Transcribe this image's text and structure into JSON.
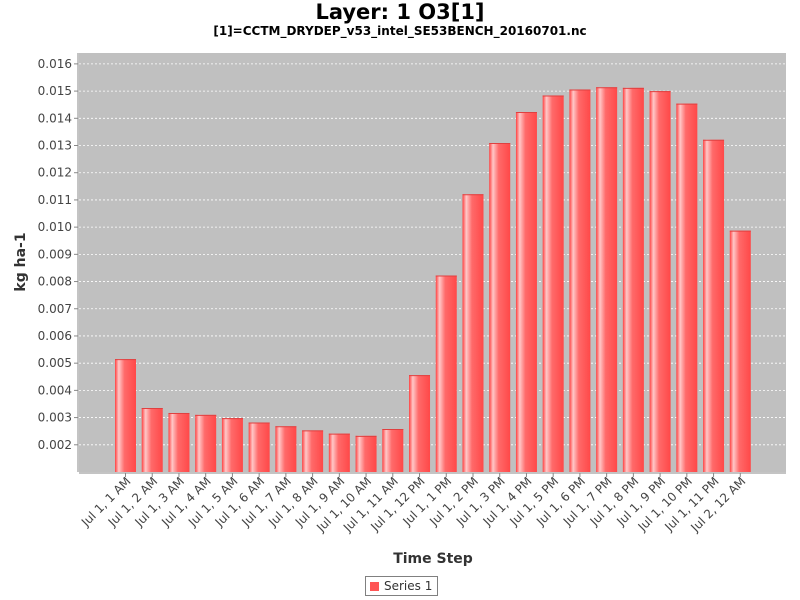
{
  "chart_data": {
    "type": "bar",
    "title": "Layer: 1 O3[1]",
    "subtitle": "[1]=CCTM_DRYDEP_v53_intel_SE53BENCH_20160701.nc",
    "xlabel": "Time Step",
    "ylabel": "kg ha-1",
    "ylim": [
      0.001,
      0.0164
    ],
    "yticks": [
      "0.002",
      "0.003",
      "0.004",
      "0.005",
      "0.006",
      "0.007",
      "0.008",
      "0.009",
      "0.010",
      "0.011",
      "0.012",
      "0.013",
      "0.014",
      "0.015",
      "0.016"
    ],
    "grid": true,
    "legend_position": "bottom",
    "bar_color": "#ff5555",
    "plot_background": "#c0c0c0",
    "categories": [
      "Jul 1, 1 AM",
      "Jul 1, 2 AM",
      "Jul 1, 3 AM",
      "Jul 1, 4 AM",
      "Jul 1, 5 AM",
      "Jul 1, 6 AM",
      "Jul 1, 7 AM",
      "Jul 1, 8 AM",
      "Jul 1, 9 AM",
      "Jul 1, 10 AM",
      "Jul 1, 11 AM",
      "Jul 1, 12 PM",
      "Jul 1, 1 PM",
      "Jul 1, 2 PM",
      "Jul 1, 3 PM",
      "Jul 1, 4 PM",
      "Jul 1, 5 PM",
      "Jul 1, 6 PM",
      "Jul 1, 7 PM",
      "Jul 1, 8 PM",
      "Jul 1, 9 PM",
      "Jul 1, 10 PM",
      "Jul 1, 11 PM",
      "Jul 2, 12 AM"
    ],
    "series": [
      {
        "name": "Series 1",
        "values": [
          0.00515,
          0.00335,
          0.00317,
          0.0031,
          0.00298,
          0.00282,
          0.00268,
          0.00253,
          0.00241,
          0.00233,
          0.00258,
          0.00456,
          0.00822,
          0.01121,
          0.01309,
          0.01423,
          0.01484,
          0.01506,
          0.01514,
          0.01512,
          0.015,
          0.01454,
          0.01321,
          0.00987
        ]
      }
    ]
  }
}
